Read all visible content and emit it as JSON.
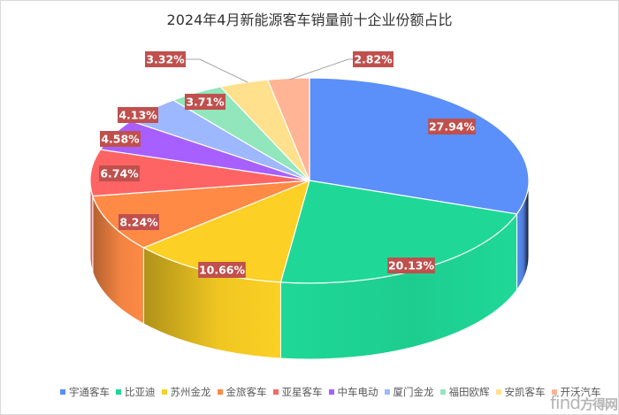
{
  "title": "2024年4月新能源客车销量前十企业份额占比",
  "chart_data": {
    "type": "pie",
    "style": "3d",
    "title": "2024年4月新能源客车销量前十企业份额占比",
    "start_angle": "12 o'clock, clockwise",
    "legend_position": "bottom",
    "label_bg_color": "#c0504d",
    "label_text_color": "#ffffff",
    "slices": [
      {
        "name": "宇通客车",
        "value": 27.94,
        "label": "27.94%",
        "color": "#5b8ff9"
      },
      {
        "name": "比亚迪",
        "value": 20.13,
        "label": "20.13%",
        "color": "#1fd897"
      },
      {
        "name": "苏州金龙",
        "value": 10.66,
        "label": "10.66%",
        "color": "#fcd024"
      },
      {
        "name": "金旅客车",
        "value": 8.24,
        "label": "8.24%",
        "color": "#ff8a45"
      },
      {
        "name": "亚星客车",
        "value": 6.74,
        "label": "6.74%",
        "color": "#ff6464"
      },
      {
        "name": "中车电动",
        "value": 4.58,
        "label": "4.58%",
        "color": "#a760ff"
      },
      {
        "name": "厦门金龙",
        "value": 4.13,
        "label": "4.13%",
        "color": "#9db8ff"
      },
      {
        "name": "福田欧辉",
        "value": 3.71,
        "label": "3.71%",
        "color": "#91e6bb"
      },
      {
        "name": "安凯客车",
        "value": 3.32,
        "label": "3.32%",
        "color": "#ffe08c"
      },
      {
        "name": "开沃汽车",
        "value": 2.82,
        "label": "2.82%",
        "color": "#ffb496"
      }
    ]
  },
  "legend": [
    {
      "label": "宇通客车",
      "color": "#5b8ff9"
    },
    {
      "label": "比亚迪",
      "color": "#1fd897"
    },
    {
      "label": "苏州金龙",
      "color": "#fcd024"
    },
    {
      "label": "金旅客车",
      "color": "#ff8a45"
    },
    {
      "label": "亚星客车",
      "color": "#ff6464"
    },
    {
      "label": "中车电动",
      "color": "#a760ff"
    },
    {
      "label": "厦门金龙",
      "color": "#9db8ff"
    },
    {
      "label": "福田欧辉",
      "color": "#91e6bb"
    },
    {
      "label": "安凯客车",
      "color": "#ffe08c"
    },
    {
      "label": "开沃汽车",
      "color": "#ffb496"
    }
  ],
  "watermark": {
    "latin": "find",
    "cn": "方得网"
  }
}
